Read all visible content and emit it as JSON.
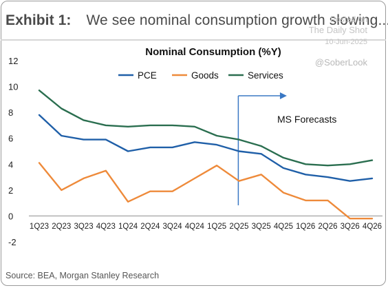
{
  "header": {
    "exhibit_label": "Exhibit 1:",
    "headline": "We see nominal consumption growth slowing..."
  },
  "watermark": {
    "posted_on": "Posted on",
    "site": "The Daily Shot",
    "date": "10-Jun-2025",
    "handle": "@SoberLook"
  },
  "source": "Source: BEA, Morgan Stanley Research",
  "chart_data": {
    "type": "line",
    "title": "Nominal Consumption (%Y)",
    "xlabel": "",
    "ylabel": "",
    "categories": [
      "1Q23",
      "2Q23",
      "3Q23",
      "4Q23",
      "1Q24",
      "2Q24",
      "3Q24",
      "4Q24",
      "1Q25",
      "2Q25",
      "3Q25",
      "4Q25",
      "1Q26",
      "2Q26",
      "3Q26",
      "4Q26"
    ],
    "ylim": [
      -2,
      12
    ],
    "yticks": [
      -2,
      0,
      2,
      4,
      6,
      8,
      10,
      12
    ],
    "grid": false,
    "legend_position": "top-center",
    "series": [
      {
        "name": "PCE",
        "color": "#1f5fa8",
        "values": [
          7.8,
          6.2,
          5.9,
          5.9,
          5.0,
          5.3,
          5.3,
          5.7,
          5.5,
          5.0,
          4.8,
          3.7,
          3.2,
          3.0,
          2.7,
          2.9
        ]
      },
      {
        "name": "Goods",
        "color": "#ee8a3a",
        "values": [
          4.1,
          2.0,
          2.9,
          3.5,
          1.1,
          1.9,
          1.9,
          2.9,
          3.9,
          2.7,
          3.2,
          1.8,
          1.2,
          1.2,
          -0.2,
          -0.2
        ]
      },
      {
        "name": "Services",
        "color": "#2a6e4f",
        "values": [
          9.7,
          8.3,
          7.4,
          7.0,
          6.9,
          7.0,
          7.0,
          6.9,
          6.2,
          5.9,
          5.4,
          4.5,
          4.0,
          3.9,
          4.0,
          4.3
        ]
      }
    ],
    "annotation": {
      "text": "MS Forecasts",
      "start_category": "2Q25",
      "end_category": "4Q25",
      "color": "#3a78c4"
    }
  }
}
